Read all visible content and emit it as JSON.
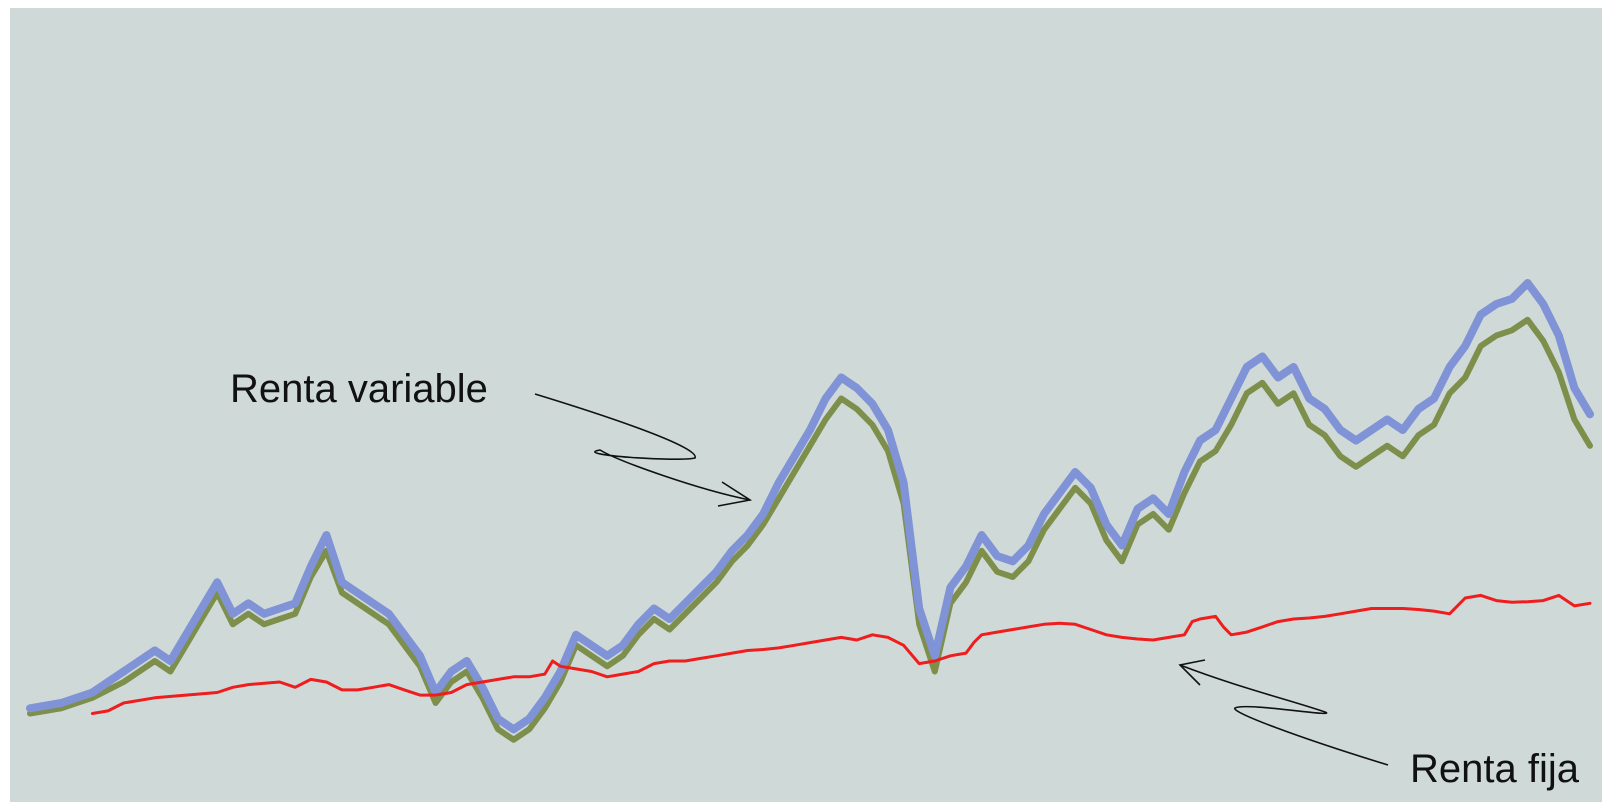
{
  "chart_data": {
    "type": "line",
    "title": "",
    "xlabel": "",
    "ylabel": "",
    "x_range": [
      0,
      100
    ],
    "y_range": [
      0,
      100
    ],
    "grid": false,
    "legend": "none",
    "background_color": "#cfdad8",
    "series": [
      {
        "key": "variable_upper",
        "color": "#7f93d6",
        "points": [
          [
            0,
            7
          ],
          [
            2,
            8
          ],
          [
            4,
            10
          ],
          [
            6,
            14
          ],
          [
            8,
            18
          ],
          [
            9,
            16
          ],
          [
            10,
            21
          ],
          [
            11,
            26
          ],
          [
            12,
            31
          ],
          [
            13,
            25
          ],
          [
            14,
            27
          ],
          [
            15,
            25
          ],
          [
            16,
            26
          ],
          [
            17,
            27
          ],
          [
            18,
            34
          ],
          [
            19,
            40
          ],
          [
            20,
            31
          ],
          [
            21,
            29
          ],
          [
            22,
            27
          ],
          [
            23,
            25
          ],
          [
            24,
            21
          ],
          [
            25,
            17
          ],
          [
            26,
            10
          ],
          [
            27,
            14
          ],
          [
            28,
            16
          ],
          [
            29,
            11
          ],
          [
            30,
            5
          ],
          [
            31,
            3
          ],
          [
            32,
            5
          ],
          [
            33,
            9
          ],
          [
            34,
            14
          ],
          [
            35,
            21
          ],
          [
            36,
            19
          ],
          [
            37,
            17
          ],
          [
            38,
            19
          ],
          [
            39,
            23
          ],
          [
            40,
            26
          ],
          [
            41,
            24
          ],
          [
            42,
            27
          ],
          [
            43,
            30
          ],
          [
            44,
            33
          ],
          [
            45,
            37
          ],
          [
            46,
            40
          ],
          [
            47,
            44
          ],
          [
            48,
            50
          ],
          [
            49,
            55
          ],
          [
            50,
            60
          ],
          [
            51,
            66
          ],
          [
            52,
            70
          ],
          [
            53,
            68
          ],
          [
            54,
            65
          ],
          [
            55,
            60
          ],
          [
            56,
            50
          ],
          [
            57,
            26
          ],
          [
            58,
            17
          ],
          [
            59,
            30
          ],
          [
            60,
            34
          ],
          [
            61,
            40
          ],
          [
            62,
            36
          ],
          [
            63,
            35
          ],
          [
            64,
            38
          ],
          [
            65,
            44
          ],
          [
            66,
            48
          ],
          [
            67,
            52
          ],
          [
            68,
            49
          ],
          [
            69,
            42
          ],
          [
            70,
            38
          ],
          [
            71,
            45
          ],
          [
            72,
            47
          ],
          [
            73,
            44
          ],
          [
            74,
            52
          ],
          [
            75,
            58
          ],
          [
            76,
            60
          ],
          [
            77,
            66
          ],
          [
            78,
            72
          ],
          [
            79,
            74
          ],
          [
            80,
            70
          ],
          [
            81,
            72
          ],
          [
            82,
            66
          ],
          [
            83,
            64
          ],
          [
            84,
            60
          ],
          [
            85,
            58
          ],
          [
            86,
            60
          ],
          [
            87,
            62
          ],
          [
            88,
            60
          ],
          [
            89,
            64
          ],
          [
            90,
            66
          ],
          [
            91,
            72
          ],
          [
            92,
            76
          ],
          [
            93,
            82
          ],
          [
            94,
            84
          ],
          [
            95,
            85
          ],
          [
            96,
            88
          ],
          [
            97,
            84
          ],
          [
            98,
            78
          ],
          [
            99,
            68
          ],
          [
            100,
            63
          ]
        ]
      },
      {
        "key": "variable_lower",
        "color": "#7e8f4c",
        "points": [
          [
            0,
            6
          ],
          [
            2,
            7
          ],
          [
            4,
            9
          ],
          [
            6,
            12
          ],
          [
            8,
            16
          ],
          [
            9,
            14
          ],
          [
            10,
            19
          ],
          [
            11,
            24
          ],
          [
            12,
            29
          ],
          [
            13,
            23
          ],
          [
            14,
            25
          ],
          [
            15,
            23
          ],
          [
            16,
            24
          ],
          [
            17,
            25
          ],
          [
            18,
            32
          ],
          [
            19,
            37
          ],
          [
            20,
            29
          ],
          [
            21,
            27
          ],
          [
            22,
            25
          ],
          [
            23,
            23
          ],
          [
            24,
            19
          ],
          [
            25,
            15
          ],
          [
            26,
            8
          ],
          [
            27,
            12
          ],
          [
            28,
            14
          ],
          [
            29,
            9
          ],
          [
            30,
            3
          ],
          [
            31,
            1
          ],
          [
            32,
            3
          ],
          [
            33,
            7
          ],
          [
            34,
            12
          ],
          [
            35,
            19
          ],
          [
            36,
            17
          ],
          [
            37,
            15
          ],
          [
            38,
            17
          ],
          [
            39,
            21
          ],
          [
            40,
            24
          ],
          [
            41,
            22
          ],
          [
            42,
            25
          ],
          [
            43,
            28
          ],
          [
            44,
            31
          ],
          [
            45,
            35
          ],
          [
            46,
            38
          ],
          [
            47,
            42
          ],
          [
            48,
            47
          ],
          [
            49,
            52
          ],
          [
            50,
            57
          ],
          [
            51,
            62
          ],
          [
            52,
            66
          ],
          [
            53,
            64
          ],
          [
            54,
            61
          ],
          [
            55,
            56
          ],
          [
            56,
            46
          ],
          [
            57,
            23
          ],
          [
            58,
            14
          ],
          [
            59,
            27
          ],
          [
            60,
            31
          ],
          [
            61,
            37
          ],
          [
            62,
            33
          ],
          [
            63,
            32
          ],
          [
            64,
            35
          ],
          [
            65,
            41
          ],
          [
            66,
            45
          ],
          [
            67,
            49
          ],
          [
            68,
            46
          ],
          [
            69,
            39
          ],
          [
            70,
            35
          ],
          [
            71,
            42
          ],
          [
            72,
            44
          ],
          [
            73,
            41
          ],
          [
            74,
            48
          ],
          [
            75,
            54
          ],
          [
            76,
            56
          ],
          [
            77,
            61
          ],
          [
            78,
            67
          ],
          [
            79,
            69
          ],
          [
            80,
            65
          ],
          [
            81,
            67
          ],
          [
            82,
            61
          ],
          [
            83,
            59
          ],
          [
            84,
            55
          ],
          [
            85,
            53
          ],
          [
            86,
            55
          ],
          [
            87,
            57
          ],
          [
            88,
            55
          ],
          [
            89,
            59
          ],
          [
            90,
            61
          ],
          [
            91,
            67
          ],
          [
            92,
            70
          ],
          [
            93,
            76
          ],
          [
            94,
            78
          ],
          [
            95,
            79
          ],
          [
            96,
            81
          ],
          [
            97,
            77
          ],
          [
            98,
            71
          ],
          [
            99,
            62
          ],
          [
            100,
            57
          ]
        ]
      },
      {
        "key": "renta_fija",
        "color": "#ef1d1d",
        "points": [
          [
            4,
            6
          ],
          [
            5,
            6.5
          ],
          [
            6,
            8
          ],
          [
            8,
            9
          ],
          [
            10,
            9.5
          ],
          [
            12,
            10
          ],
          [
            13,
            11
          ],
          [
            14,
            11.5
          ],
          [
            16,
            12
          ],
          [
            17,
            11
          ],
          [
            18,
            12.5
          ],
          [
            19,
            12
          ],
          [
            20,
            10.5
          ],
          [
            21,
            10.5
          ],
          [
            22,
            11
          ],
          [
            23,
            11.5
          ],
          [
            24,
            10.5
          ],
          [
            25,
            9.5
          ],
          [
            26,
            9.5
          ],
          [
            27,
            10
          ],
          [
            28,
            11.5
          ],
          [
            29,
            12
          ],
          [
            30,
            12.5
          ],
          [
            31,
            13
          ],
          [
            32,
            13
          ],
          [
            33,
            13.5
          ],
          [
            33.5,
            16
          ],
          [
            34,
            15
          ],
          [
            35,
            14.5
          ],
          [
            36,
            14
          ],
          [
            37,
            13
          ],
          [
            38,
            13.5
          ],
          [
            39,
            14
          ],
          [
            40,
            15.5
          ],
          [
            41,
            16
          ],
          [
            42,
            16
          ],
          [
            43,
            16.5
          ],
          [
            44,
            17
          ],
          [
            45,
            17.5
          ],
          [
            46,
            18
          ],
          [
            47,
            18.2
          ],
          [
            48,
            18.5
          ],
          [
            49,
            19
          ],
          [
            50,
            19.5
          ],
          [
            51,
            20
          ],
          [
            52,
            20.5
          ],
          [
            53,
            20
          ],
          [
            54,
            21
          ],
          [
            55,
            20.5
          ],
          [
            56,
            19
          ],
          [
            57,
            15.5
          ],
          [
            58,
            16
          ],
          [
            59,
            17
          ],
          [
            60,
            17.5
          ],
          [
            60.5,
            19.5
          ],
          [
            61,
            21
          ],
          [
            62,
            21.5
          ],
          [
            63,
            22
          ],
          [
            64,
            22.5
          ],
          [
            65,
            23
          ],
          [
            66,
            23.2
          ],
          [
            67,
            23
          ],
          [
            68,
            22
          ],
          [
            69,
            21
          ],
          [
            70,
            20.5
          ],
          [
            71,
            20.2
          ],
          [
            72,
            20
          ],
          [
            73,
            20.5
          ],
          [
            74,
            21
          ],
          [
            74.5,
            23.5
          ],
          [
            75,
            24
          ],
          [
            76,
            24.5
          ],
          [
            76.5,
            22.5
          ],
          [
            77,
            21
          ],
          [
            78,
            21.5
          ],
          [
            79,
            22.5
          ],
          [
            80,
            23.5
          ],
          [
            81,
            24
          ],
          [
            82,
            24.2
          ],
          [
            83,
            24.5
          ],
          [
            84,
            25
          ],
          [
            85,
            25.5
          ],
          [
            86,
            26
          ],
          [
            87,
            26
          ],
          [
            88,
            26
          ],
          [
            89,
            25.8
          ],
          [
            90,
            25.5
          ],
          [
            91,
            25
          ],
          [
            91.5,
            26.5
          ],
          [
            92,
            28
          ],
          [
            93,
            28.5
          ],
          [
            94,
            27.5
          ],
          [
            95,
            27.2
          ],
          [
            96,
            27.3
          ],
          [
            97,
            27.5
          ],
          [
            98,
            28.5
          ],
          [
            98.5,
            27.5
          ],
          [
            99,
            26.5
          ],
          [
            100,
            27
          ]
        ]
      }
    ],
    "annotations": [
      {
        "label": "Renta variable",
        "target": "variable_upper"
      },
      {
        "label": "Renta fija",
        "target": "renta_fija"
      }
    ]
  }
}
